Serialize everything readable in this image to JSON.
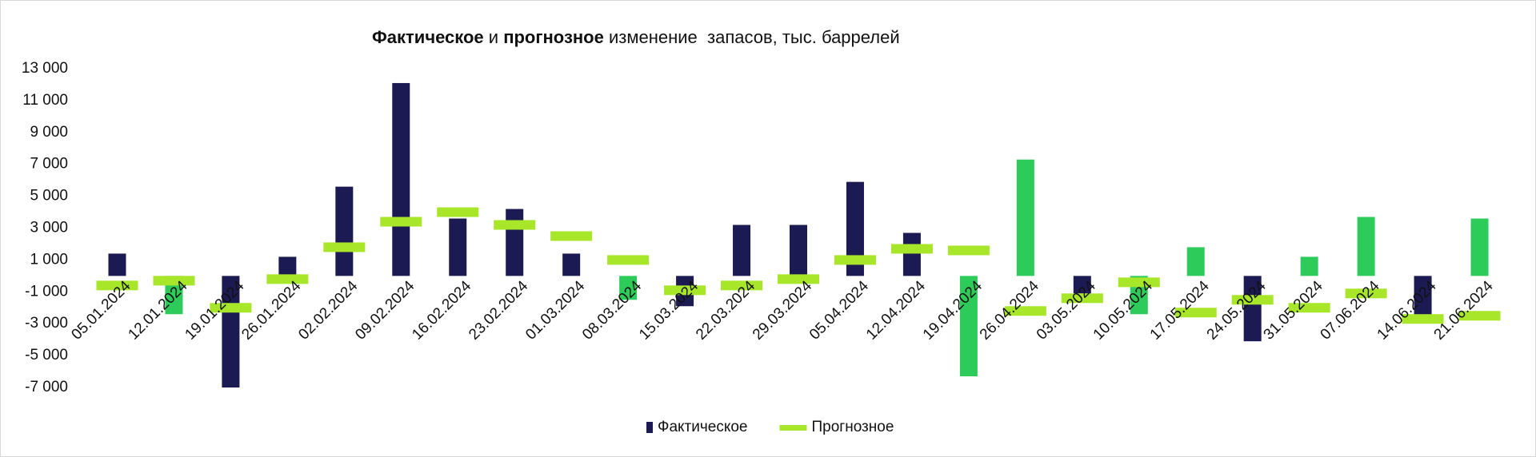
{
  "chart_data": {
    "type": "bar",
    "title": [
      {
        "text": "Фактическое",
        "bold": true
      },
      {
        "text": " и ",
        "bold": false
      },
      {
        "text": "прогнозное",
        "bold": true
      },
      {
        "text": " изменение  запасов, тыс. баррелей",
        "bold": false
      }
    ],
    "categories": [
      "05.01.2024",
      "12.01.2024",
      "19.01.2024",
      "26.01.2024",
      "02.02.2024",
      "09.02.2024",
      "16.02.2024",
      "23.02.2024",
      "01.03.2024",
      "08.03.2024",
      "15.03.2024",
      "22.03.2024",
      "29.03.2024",
      "05.04.2024",
      "12.04.2024",
      "19.04.2024",
      "26.04.2024",
      "03.05.2024",
      "10.05.2024",
      "17.05.2024",
      "24.05.2024",
      "31.05.2024",
      "07.06.2024",
      "14.06.2024",
      "21.06.2024"
    ],
    "series": [
      {
        "name": "Фактическое",
        "style": "bar",
        "color": "#1c1a52",
        "values": [
          1400,
          -2400,
          -7000,
          1200,
          5600,
          12100,
          3600,
          4200,
          1400,
          -1500,
          -1900,
          3200,
          3200,
          5900,
          2700,
          -6300,
          7300,
          -1100,
          -2400,
          1800,
          -4100,
          1200,
          3700,
          -2500,
          3600
        ],
        "colors": [
          "#1c1a52",
          "#2dcb5a",
          "#1c1a52",
          "#1c1a52",
          "#1c1a52",
          "#1c1a52",
          "#1c1a52",
          "#1c1a52",
          "#1c1a52",
          "#2dcb5a",
          "#1c1a52",
          "#1c1a52",
          "#1c1a52",
          "#1c1a52",
          "#1c1a52",
          "#2dcb5a",
          "#2dcb5a",
          "#1c1a52",
          "#2dcb5a",
          "#2dcb5a",
          "#1c1a52",
          "#2dcb5a",
          "#2dcb5a",
          "#1c1a52",
          "#2dcb5a"
        ]
      },
      {
        "name": "Прогнозное",
        "style": "dash",
        "color": "#a8e62a",
        "values": [
          -600,
          -300,
          -2000,
          -200,
          1800,
          3400,
          4000,
          3200,
          2500,
          1000,
          -900,
          -600,
          -200,
          1000,
          1700,
          1600,
          -2200,
          -1400,
          -400,
          -2300,
          -1500,
          -2000,
          -1100,
          -2700,
          -2500
        ]
      }
    ],
    "ylim": [
      -7000,
      13000
    ],
    "yticks": [
      {
        "value": -7000,
        "label": "-7 000"
      },
      {
        "value": -5000,
        "label": "-5 000"
      },
      {
        "value": -3000,
        "label": "-3 000"
      },
      {
        "value": -1000,
        "label": "-1 000"
      },
      {
        "value": 1000,
        "label": "1 000"
      },
      {
        "value": 3000,
        "label": "3 000"
      },
      {
        "value": 5000,
        "label": "5 000"
      },
      {
        "value": 7000,
        "label": "7 000"
      },
      {
        "value": 9000,
        "label": "9 000"
      },
      {
        "value": 11000,
        "label": "11 000"
      },
      {
        "value": 13000,
        "label": "13 000"
      }
    ],
    "grid": false,
    "legend": "bottom"
  }
}
